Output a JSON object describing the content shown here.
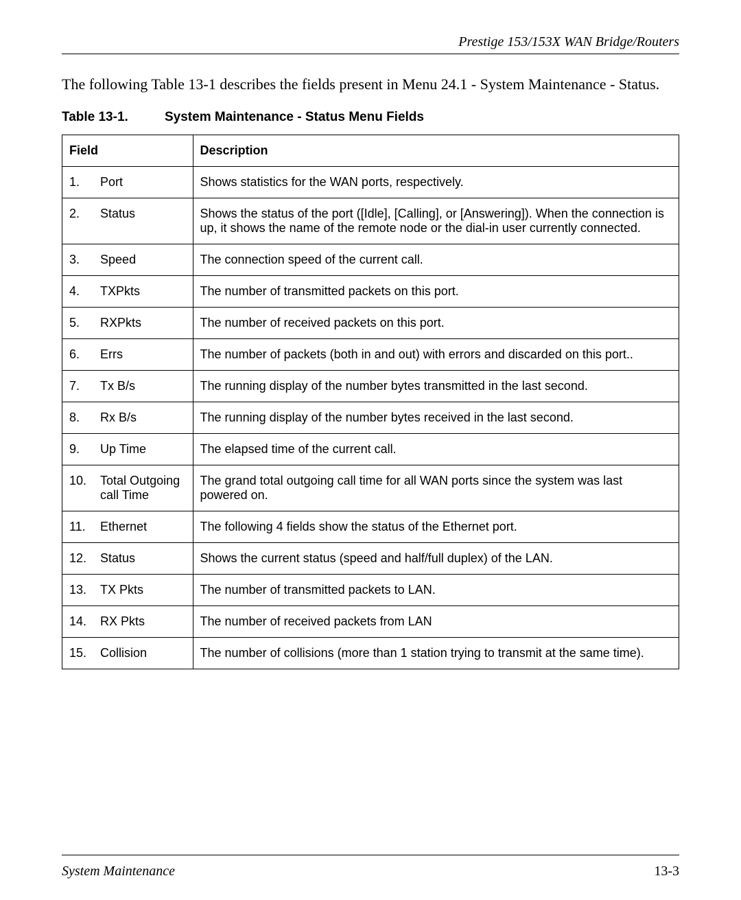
{
  "header": {
    "running_title": "Prestige 153/153X  WAN Bridge/Routers"
  },
  "intro": "The following Table 13-1 describes the fields present in Menu 24.1 - System Maintenance - Status.",
  "table_caption": {
    "number": "Table 13-1.",
    "title": "System Maintenance - Status Menu Fields"
  },
  "table": {
    "columns": [
      "Field",
      "Description"
    ],
    "rows": [
      {
        "num": "1.",
        "field": "Port",
        "desc": "Shows statistics for the WAN ports, respectively."
      },
      {
        "num": "2.",
        "field": "Status",
        "desc": "Shows the status of the port ([Idle], [Calling], or [Answering]).  When the connection is up, it shows the name of the remote node or the dial-in user currently connected."
      },
      {
        "num": "3.",
        "field": "Speed",
        "desc": "The connection speed of the current call."
      },
      {
        "num": "4.",
        "field": "TXPkts",
        "desc": "The number of transmitted packets on this port."
      },
      {
        "num": "5.",
        "field": "RXPkts",
        "desc": "The number of received packets on this port."
      },
      {
        "num": "6.",
        "field": "Errs",
        "desc": "The number of packets (both in and out) with errors and discarded on this port.."
      },
      {
        "num": "7.",
        "field": "Tx B/s",
        "desc": "The running display of the number bytes transmitted in the last second."
      },
      {
        "num": "8.",
        "field": "Rx B/s",
        "desc": "The running display of the number bytes received in the last second."
      },
      {
        "num": "9.",
        "field": "Up Time",
        "desc": "The elapsed time of the current call."
      },
      {
        "num": "10.",
        "field": "Total Outgoing call Time",
        "desc": "The grand total outgoing call time for all WAN ports since the system was last powered on."
      },
      {
        "num": "11.",
        "field": "Ethernet",
        "desc": "The following 4 fields show the status of the Ethernet port."
      },
      {
        "num": "12.",
        "field": "Status",
        "desc": "Shows the current status (speed and half/full duplex) of the LAN."
      },
      {
        "num": "13.",
        "field": "TX Pkts",
        "desc": "The number of transmitted packets to LAN."
      },
      {
        "num": "14.",
        "field": "RX Pkts",
        "desc": "The number of received packets from LAN"
      },
      {
        "num": "15.",
        "field": "Collision",
        "desc": "The number of collisions (more than 1 station trying to transmit at the same time)."
      }
    ]
  },
  "footer": {
    "section": "System Maintenance",
    "page": "13-3"
  }
}
